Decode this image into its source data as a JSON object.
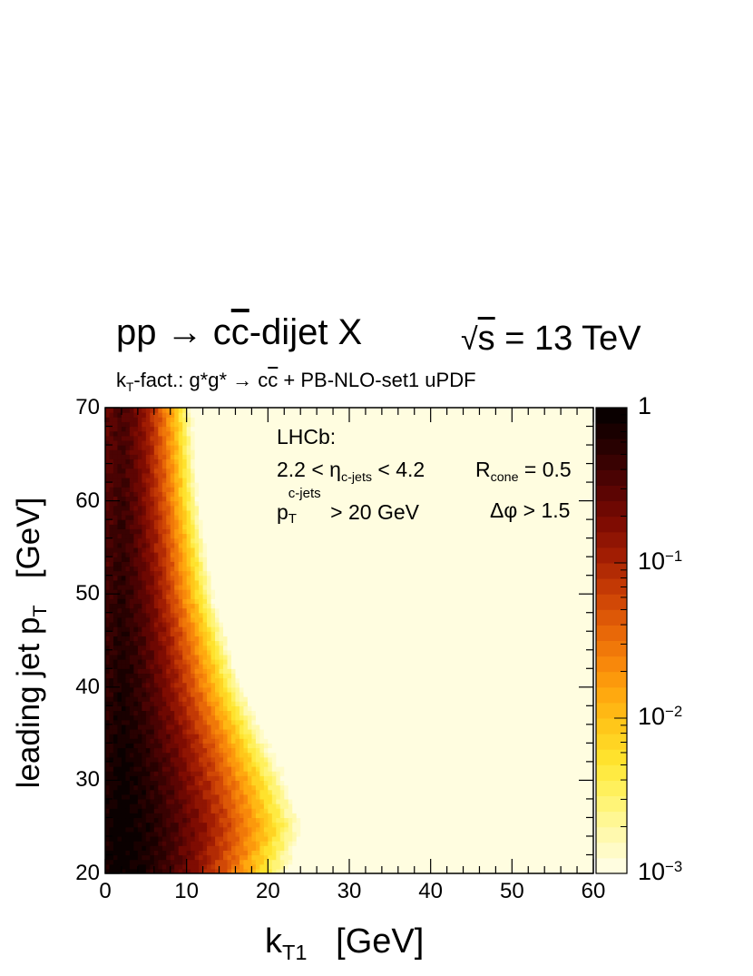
{
  "header": {
    "process_main": "pp",
    "process_arrow": " → c",
    "process_cbar": "c",
    "process_rest": "-dijet X",
    "energy_sqrt": "s",
    "energy_value": " = 13 TeV",
    "subtitle_k": "k",
    "subtitle_T": "T",
    "subtitle_rest": "-fact.: g*g* → c",
    "subtitle_cbar": "c",
    "subtitle_tail": " + PB-NLO-set1 uPDF"
  },
  "annotations": {
    "experiment": "LHCb:",
    "eta_pre": "2.2 < η",
    "eta_sub": "c-jets",
    "eta_post": " < 4.2",
    "r_main": "R",
    "r_sub": "cone",
    "r_post": " = 0.5",
    "pt_main": "p",
    "pt_sub": "T",
    "pt_sup": "c-jets",
    "pt_post": " > 20 GeV",
    "dphi": "Δφ > 1.5"
  },
  "axes": {
    "ylabel_main": "leading jet p",
    "ylabel_sub": "T",
    "ylabel_unit": "   [GeV]",
    "xlabel_main": "k",
    "xlabel_sub": "T1",
    "xlabel_unit": "   [GeV]"
  },
  "chart_data": {
    "type": "heatmap",
    "x": {
      "min": 0,
      "max": 60,
      "ticks": [
        0,
        10,
        20,
        30,
        40,
        50,
        60
      ]
    },
    "y": {
      "min": 20,
      "max": 70,
      "ticks": [
        20,
        30,
        40,
        50,
        60,
        70
      ]
    },
    "z": {
      "scale": "log",
      "min": 0.001,
      "max": 1,
      "levels": 30,
      "ticks": [
        {
          "value": 1,
          "label": "1"
        },
        {
          "value": 0.1,
          "label": "10",
          "exp": "−1"
        },
        {
          "value": 0.01,
          "label": "10",
          "exp": "−2"
        },
        {
          "value": 0.001,
          "label": "10",
          "exp": "−3"
        }
      ]
    },
    "description_of_shape": "normalized density peaks (=1) at kT1 ~ 2 GeV, leading pT ~ 25 GeV; falls steeply with kT1 and slowly with pT",
    "profile_kT1_half_width_vs_pT": [
      {
        "pT": 20,
        "kT1_width": 6.0
      },
      {
        "pT": 25,
        "kT1_width": 6.5
      },
      {
        "pT": 30,
        "kT1_width": 6.0
      },
      {
        "pT": 40,
        "kT1_width": 4.5
      },
      {
        "pT": 50,
        "kT1_width": 3.5
      },
      {
        "pT": 60,
        "kT1_width": 3.0
      },
      {
        "pT": 70,
        "kT1_width": 2.8
      }
    ],
    "colormap": [
      "#fffde0",
      "#fff9a8",
      "#fff36a",
      "#ffe630",
      "#ffc81a",
      "#ffa70e",
      "#f6820a",
      "#e25e07",
      "#c63b05",
      "#a01c03",
      "#7a0a02",
      "#520303",
      "#2c0101",
      "#0a0000"
    ]
  }
}
